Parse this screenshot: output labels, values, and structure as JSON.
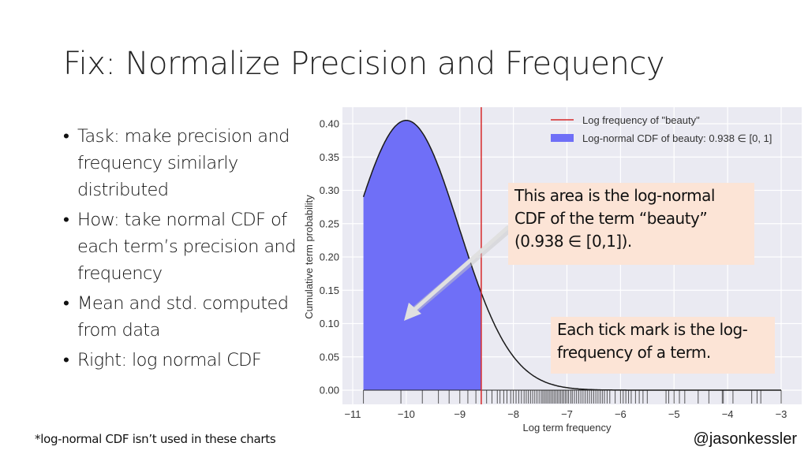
{
  "slide": {
    "title": "Fix: Normalize Precision and Frequency",
    "bullets": [
      "Task: make precision and frequency similarly distributed",
      "How: take normal CDF of each term’s precision and frequency",
      "Mean and std. computed from data",
      "Right: log normal CDF"
    ],
    "bullet_glyph": "•",
    "footnote": "*log-normal CDF isn’t used in these charts",
    "handle": "@jasonkessler"
  },
  "callouts": {
    "area": "This area is the log-normal CDF of the term “beauty” (0.938 ∈ [0,1]).",
    "ticks": "Each tick mark is the log-frequency of a term."
  },
  "colors": {
    "plot_bg": "#eaeaf2",
    "grid": "#ffffff",
    "fill": "#6f6ff7",
    "red_line": "#d62728",
    "curve": "#1a1a1a",
    "callout_bg": "#fce4d6",
    "arrow": "#e0e0e0"
  },
  "chart_data": {
    "type": "area",
    "title": "",
    "xlabel": "Log term frequency",
    "ylabel": "Cumulative term probability",
    "xlim": [
      -11.2,
      -2.7
    ],
    "ylim": [
      -0.02,
      0.42
    ],
    "xticks": [
      -11,
      -10,
      -9,
      -8,
      -7,
      -6,
      -5,
      -4,
      -3
    ],
    "xtick_labels": [
      "−11",
      "−10",
      "−9",
      "−8",
      "−7",
      "−6",
      "−5",
      "−4",
      "−3"
    ],
    "yticks": [
      0.0,
      0.05,
      0.1,
      0.15,
      0.2,
      0.25,
      0.3,
      0.35,
      0.4
    ],
    "ytick_labels": [
      "0.00",
      "0.05",
      "0.10",
      "0.15",
      "0.20",
      "0.25",
      "0.30",
      "0.35",
      "0.40"
    ],
    "grid": true,
    "density_curve": {
      "description": "normal pdf over log term frequency",
      "mean": -10.0,
      "std": 0.98,
      "x_start": -10.8,
      "x_end": -3.0
    },
    "beauty_log_frequency": -8.6,
    "shaded_range": [
      -10.8,
      -8.6
    ],
    "cdf_value": 0.938,
    "legend": {
      "placement": "top-right",
      "entries": [
        {
          "label": "Log frequency of \"beauty\"",
          "type": "line"
        },
        {
          "label": "Log-normal CDF of beauty: 0.938 ∈ [0, 1]",
          "type": "patch"
        }
      ]
    },
    "rug_ticks": [
      -10.8,
      -10.1,
      -9.7,
      -9.4,
      -9.2,
      -9.0,
      -8.85,
      -8.7,
      -8.5,
      -8.4,
      -8.3,
      -8.25,
      -8.18,
      -8.12,
      -8.05,
      -8.0,
      -7.95,
      -7.9,
      -7.85,
      -7.8,
      -7.76,
      -7.72,
      -7.68,
      -7.64,
      -7.6,
      -7.56,
      -7.52,
      -7.48,
      -7.45,
      -7.42,
      -7.39,
      -7.36,
      -7.33,
      -7.3,
      -7.27,
      -7.24,
      -7.21,
      -7.18,
      -7.15,
      -7.12,
      -7.09,
      -7.06,
      -7.03,
      -7.0,
      -6.97,
      -6.93,
      -6.9,
      -6.86,
      -6.82,
      -6.78,
      -6.74,
      -6.7,
      -6.66,
      -6.62,
      -6.58,
      -6.54,
      -6.5,
      -6.46,
      -6.42,
      -6.38,
      -6.34,
      -6.3,
      -6.25,
      -6.2,
      -6.1,
      -6.0,
      -5.95,
      -5.9,
      -5.85,
      -5.8,
      -5.72,
      -5.65,
      -5.58,
      -5.5,
      -5.15,
      -5.1,
      -5.0,
      -4.9,
      -4.8,
      -4.55,
      -4.35,
      -4.1,
      -4.08,
      -3.9,
      -3.55,
      -3.45,
      -3.38,
      -3.0
    ]
  }
}
